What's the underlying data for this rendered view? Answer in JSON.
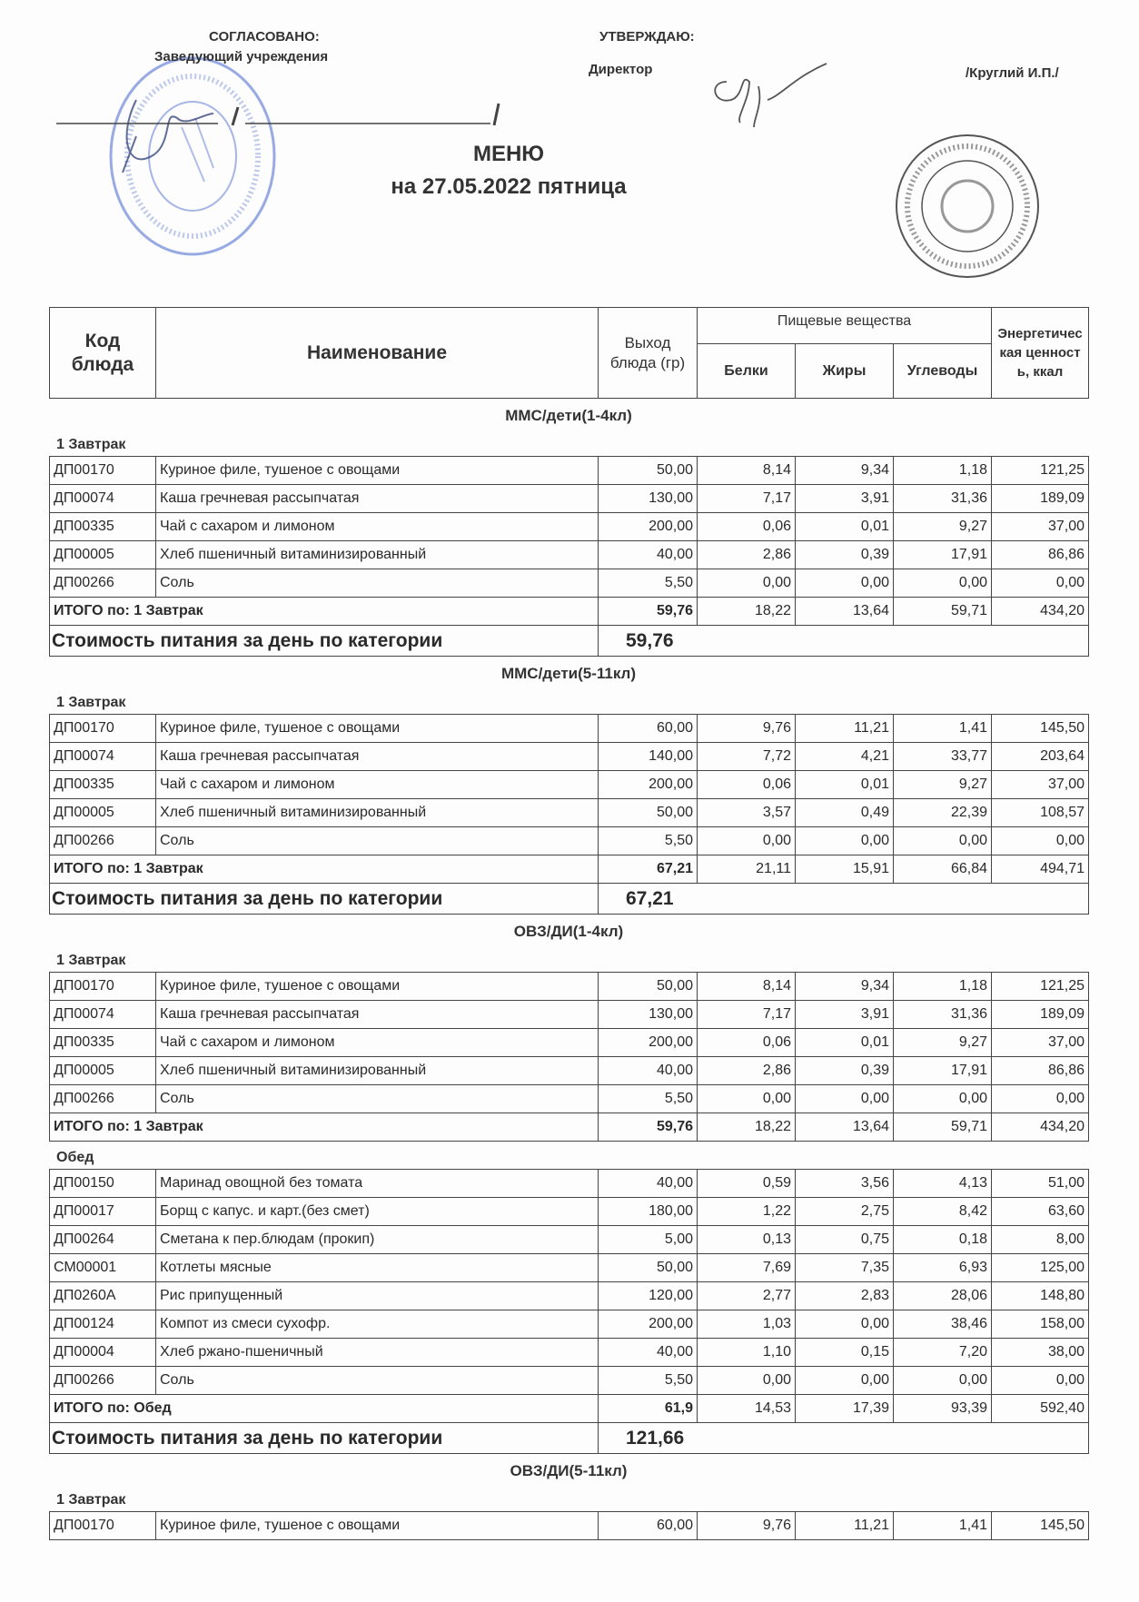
{
  "header": {
    "agreed": "СОГЛАСОВАНО:",
    "agreed_role": "Заведующий учреждения",
    "approve": "УТВЕРЖДАЮ:",
    "approve_role": "Директор",
    "director_name": "/Круглий И.П./",
    "title": "МЕНЮ",
    "subtitle": "на 27.05.2022 пятница",
    "stamp_colors": {
      "left": "#7d95dc",
      "right": "#555555"
    }
  },
  "columns": {
    "code": "Код блюда",
    "name": "Наименование",
    "yield": "Выход блюда (гр)",
    "nutrients": "Пищевые вещества",
    "protein": "Белки",
    "fat": "Жиры",
    "carbs": "Углеводы",
    "energy": "Энергетическая ценность, ккал"
  },
  "sections": [
    {
      "title": "ММС/дети(1-4кл)",
      "meals": [
        {
          "name": "1 Завтрак",
          "rows": [
            [
              "ДП00170",
              "Куриное филе, тушеное с овощами",
              "50,00",
              "8,14",
              "9,34",
              "1,18",
              "121,25"
            ],
            [
              "ДП00074",
              "Каша гречневая рассыпчатая",
              "130,00",
              "7,17",
              "3,91",
              "31,36",
              "189,09"
            ],
            [
              "ДП00335",
              "Чай с сахаром и  лимоном",
              "200,00",
              "0,06",
              "0,01",
              "9,27",
              "37,00"
            ],
            [
              "ДП00005",
              "Хлеб пшеничный витаминизированный",
              "40,00",
              "2,86",
              "0,39",
              "17,91",
              "86,86"
            ],
            [
              "ДП00266",
              "Соль",
              "5,50",
              "0,00",
              "0,00",
              "0,00",
              "0,00"
            ]
          ],
          "total": [
            "ИТОГО по: 1 Завтрак",
            "59,76",
            "18,22",
            "13,64",
            "59,71",
            "434,20"
          ]
        }
      ],
      "cost": [
        "Стоимость питания за день по категории",
        "59,76"
      ]
    },
    {
      "title": "ММС/дети(5-11кл)",
      "meals": [
        {
          "name": "1 Завтрак",
          "rows": [
            [
              "ДП00170",
              "Куриное филе, тушеное с овощами",
              "60,00",
              "9,76",
              "11,21",
              "1,41",
              "145,50"
            ],
            [
              "ДП00074",
              "Каша гречневая рассыпчатая",
              "140,00",
              "7,72",
              "4,21",
              "33,77",
              "203,64"
            ],
            [
              "ДП00335",
              "Чай с сахаром и  лимоном",
              "200,00",
              "0,06",
              "0,01",
              "9,27",
              "37,00"
            ],
            [
              "ДП00005",
              "Хлеб пшеничный витаминизированный",
              "50,00",
              "3,57",
              "0,49",
              "22,39",
              "108,57"
            ],
            [
              "ДП00266",
              "Соль",
              "5,50",
              "0,00",
              "0,00",
              "0,00",
              "0,00"
            ]
          ],
          "total": [
            "ИТОГО по: 1 Завтрак",
            "67,21",
            "21,11",
            "15,91",
            "66,84",
            "494,71"
          ]
        }
      ],
      "cost": [
        "Стоимость питания за день по категории",
        "67,21"
      ]
    },
    {
      "title": "ОВЗ/ДИ(1-4кл)",
      "meals": [
        {
          "name": "1 Завтрак",
          "rows": [
            [
              "ДП00170",
              "Куриное филе, тушеное с овощами",
              "50,00",
              "8,14",
              "9,34",
              "1,18",
              "121,25"
            ],
            [
              "ДП00074",
              "Каша гречневая рассыпчатая",
              "130,00",
              "7,17",
              "3,91",
              "31,36",
              "189,09"
            ],
            [
              "ДП00335",
              "Чай с сахаром и  лимоном",
              "200,00",
              "0,06",
              "0,01",
              "9,27",
              "37,00"
            ],
            [
              "ДП00005",
              "Хлеб пшеничный витаминизированный",
              "40,00",
              "2,86",
              "0,39",
              "17,91",
              "86,86"
            ],
            [
              "ДП00266",
              "Соль",
              "5,50",
              "0,00",
              "0,00",
              "0,00",
              "0,00"
            ]
          ],
          "total": [
            "ИТОГО по: 1 Завтрак",
            "59,76",
            "18,22",
            "13,64",
            "59,71",
            "434,20"
          ]
        },
        {
          "name": "Обед",
          "rows": [
            [
              "ДП00150",
              "Маринад овощной без томата",
              "40,00",
              "0,59",
              "3,56",
              "4,13",
              "51,00"
            ],
            [
              "ДП00017",
              "Борщ с капус. и карт.(без смет)",
              "180,00",
              "1,22",
              "2,75",
              "8,42",
              "63,60"
            ],
            [
              "ДП00264",
              "Сметана к пер.блюдам (прокип)",
              "5,00",
              "0,13",
              "0,75",
              "0,18",
              "8,00"
            ],
            [
              "СМ00001",
              "Котлеты мясные",
              "50,00",
              "7,69",
              "7,35",
              "6,93",
              "125,00"
            ],
            [
              "ДП0260А",
              "Рис припущенный",
              "120,00",
              "2,77",
              "2,83",
              "28,06",
              "148,80"
            ],
            [
              "ДП00124",
              "Компот из смеси сухофр.",
              "200,00",
              "1,03",
              "0,00",
              "38,46",
              "158,00"
            ],
            [
              "ДП00004",
              "Хлеб ржано-пшеничный",
              "40,00",
              "1,10",
              "0,15",
              "7,20",
              "38,00"
            ],
            [
              "ДП00266",
              "Соль",
              "5,50",
              "0,00",
              "0,00",
              "0,00",
              "0,00"
            ]
          ],
          "total": [
            "ИТОГО по: Обед",
            "61,9",
            "14,53",
            "17,39",
            "93,39",
            "592,40"
          ]
        }
      ],
      "cost": [
        "Стоимость питания за день по категории",
        "121,66"
      ]
    },
    {
      "title": "ОВЗ/ДИ(5-11кл)",
      "meals": [
        {
          "name": "1 Завтрак",
          "rows": [
            [
              "ДП00170",
              "Куриное филе, тушеное с овощами",
              "60,00",
              "9,76",
              "11,21",
              "1,41",
              "145,50"
            ]
          ]
        }
      ]
    }
  ]
}
